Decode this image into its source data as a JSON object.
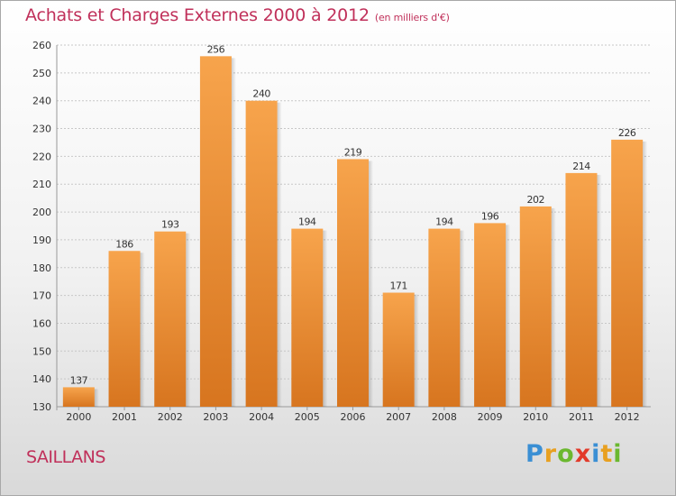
{
  "chart_data": {
    "type": "bar",
    "title": "Achats et Charges Externes 2000 à 2012",
    "subtitle": "(en milliers d'€)",
    "categories": [
      "2000",
      "2001",
      "2002",
      "2003",
      "2004",
      "2005",
      "2006",
      "2007",
      "2008",
      "2009",
      "2010",
      "2011",
      "2012"
    ],
    "values": [
      137,
      186,
      193,
      256,
      240,
      194,
      219,
      171,
      194,
      196,
      202,
      214,
      226
    ],
    "ylim": [
      130,
      260
    ],
    "yticks": [
      130,
      140,
      150,
      160,
      170,
      180,
      190,
      200,
      210,
      220,
      230,
      240,
      250,
      260
    ],
    "grid": true,
    "bar_color_top": "#f7a44c",
    "bar_color_bottom": "#d7751f"
  },
  "location": "SAILLANS",
  "logo": {
    "text": "Proxiti",
    "letters": [
      {
        "char": "P",
        "color": "#3a8fd4"
      },
      {
        "char": "r",
        "color": "#e8a020"
      },
      {
        "char": "o",
        "color": "#6bb82f"
      },
      {
        "char": "x",
        "color": "#e23a2a"
      },
      {
        "char": "i",
        "color": "#3a8fd4"
      },
      {
        "char": "t",
        "color": "#e8a020"
      },
      {
        "char": "i",
        "color": "#6bb82f"
      }
    ]
  }
}
